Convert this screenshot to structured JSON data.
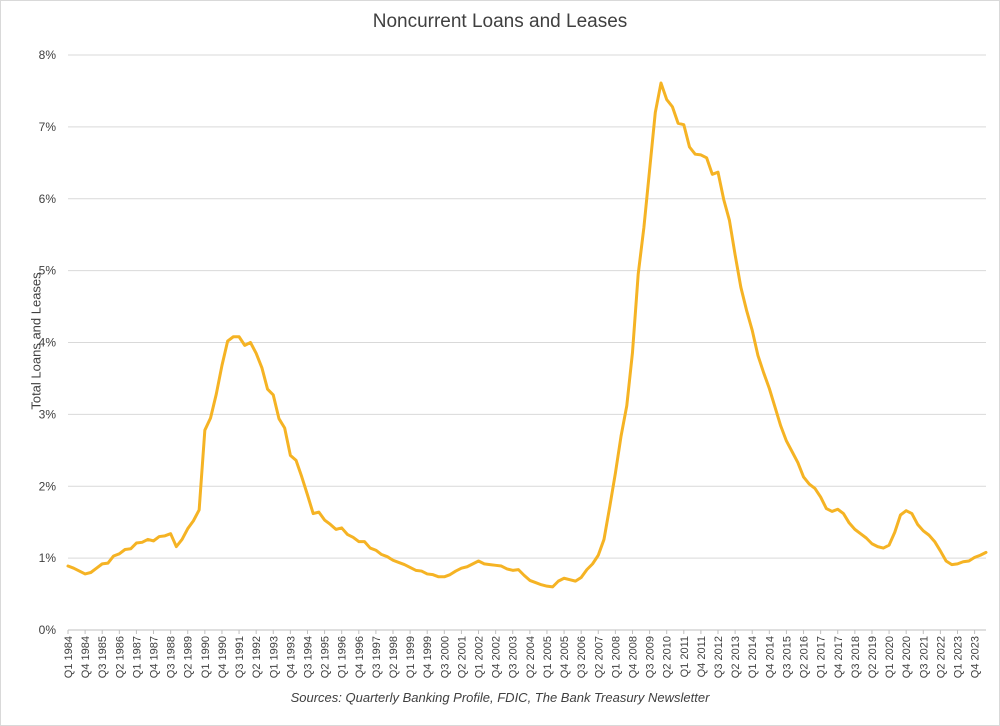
{
  "chart_data": {
    "type": "line",
    "title": "Noncurrent Loans and Leases",
    "xlabel": "",
    "ylabel": "Total Loans and Leases",
    "source": "Sources: Quarterly Banking Profile, FDIC, The Bank Treasury Newsletter",
    "ylim": [
      0,
      8
    ],
    "y_ticks": [
      "0%",
      "1%",
      "2%",
      "3%",
      "4%",
      "5%",
      "6%",
      "7%",
      "8%"
    ],
    "x_start": "Q1 1984",
    "x_end": "Q4 2023",
    "x_tick_labels": [
      "Q1 1984",
      "Q4 1984",
      "Q3 1985",
      "Q2 1986",
      "Q1 1987",
      "Q4 1987",
      "Q3 1988",
      "Q2 1989",
      "Q1 1990",
      "Q4 1990",
      "Q3 1991",
      "Q2 1992",
      "Q1 1993",
      "Q4 1993",
      "Q3 1994",
      "Q2 1995",
      "Q1 1996",
      "Q4 1996",
      "Q3 1997",
      "Q2 1998",
      "Q1 1999",
      "Q4 1999",
      "Q3 2000",
      "Q2 2001",
      "Q1 2002",
      "Q4 2002",
      "Q3 2003",
      "Q2 2004",
      "Q1 2005",
      "Q4 2005",
      "Q3 2006",
      "Q2 2007",
      "Q1 2008",
      "Q4 2008",
      "Q3 2009",
      "Q2 2010",
      "Q1 2011",
      "Q4 2011",
      "Q3 2012",
      "Q2 2013",
      "Q1 2014",
      "Q4 2014",
      "Q3 2015",
      "Q2 2016",
      "Q1 2017",
      "Q4 2017",
      "Q3 2018",
      "Q2 2019",
      "Q1 2020",
      "Q4 2020",
      "Q3 2021",
      "Q2 2022",
      "Q1 2023",
      "Q4 2023"
    ],
    "grid": true,
    "legend": "none",
    "line_color": "#F5B324",
    "series": [
      {
        "values": [
          0.89,
          0.86,
          0.82,
          0.78,
          0.8,
          0.86,
          0.92,
          0.93,
          1.03,
          1.06,
          1.12,
          1.13,
          1.21,
          1.22,
          1.26,
          1.24,
          1.3,
          1.31,
          1.34,
          1.16,
          1.26,
          1.41,
          1.52,
          1.67,
          2.78,
          2.95,
          3.28,
          3.68,
          4.02,
          4.08,
          4.08,
          3.96,
          4.0,
          3.85,
          3.65,
          3.35,
          3.27,
          2.94,
          2.81,
          2.43,
          2.36,
          2.13,
          1.88,
          1.62,
          1.64,
          1.53,
          1.47,
          1.4,
          1.42,
          1.33,
          1.29,
          1.23,
          1.23,
          1.14,
          1.11,
          1.05,
          1.02,
          0.97,
          0.94,
          0.91,
          0.87,
          0.83,
          0.82,
          0.78,
          0.77,
          0.74,
          0.74,
          0.77,
          0.82,
          0.86,
          0.88,
          0.92,
          0.96,
          0.92,
          0.91,
          0.9,
          0.89,
          0.85,
          0.83,
          0.84,
          0.76,
          0.69,
          0.66,
          0.63,
          0.61,
          0.6,
          0.68,
          0.72,
          0.7,
          0.68,
          0.73,
          0.84,
          0.92,
          1.04,
          1.26,
          1.71,
          2.18,
          2.7,
          3.12,
          3.86,
          4.95,
          5.6,
          6.4,
          7.2,
          7.61,
          7.38,
          7.28,
          7.05,
          7.03,
          6.72,
          6.62,
          6.61,
          6.57,
          6.34,
          6.37,
          5.99,
          5.7,
          5.22,
          4.77,
          4.45,
          4.17,
          3.82,
          3.58,
          3.36,
          3.1,
          2.84,
          2.63,
          2.48,
          2.33,
          2.13,
          2.03,
          1.97,
          1.85,
          1.69,
          1.65,
          1.68,
          1.62,
          1.49,
          1.4,
          1.34,
          1.28,
          1.2,
          1.16,
          1.14,
          1.18,
          1.36,
          1.6,
          1.66,
          1.62,
          1.47,
          1.38,
          1.32,
          1.23,
          1.1,
          0.96,
          0.91,
          0.92,
          0.95,
          0.96,
          1.01,
          1.04,
          1.08
        ]
      }
    ]
  }
}
